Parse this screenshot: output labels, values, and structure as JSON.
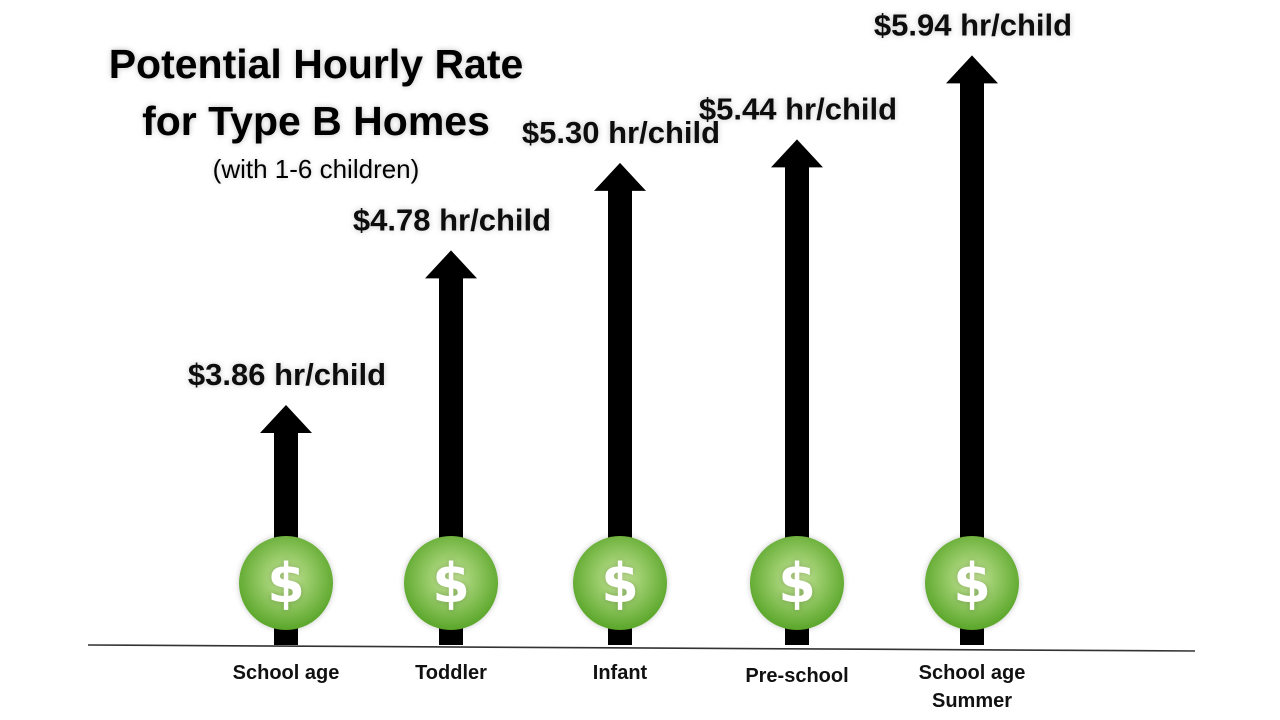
{
  "title": {
    "line1": "Potential Hourly Rate",
    "line2": "for Type B Homes",
    "subtitle": "(with 1-6 children)"
  },
  "coin_symbol": "$",
  "colors": {
    "arrow": "#000000",
    "coin_light": "#c9e89a",
    "coin_dark": "#5aa62a",
    "baseline": "#333333"
  },
  "chart_data": {
    "type": "bar",
    "title": "Potential Hourly Rate for Type B Homes",
    "subtitle": "(with 1-6 children)",
    "categories": [
      [
        "School age"
      ],
      [
        "Toddler"
      ],
      [
        "Infant"
      ],
      [
        "Pre-school"
      ],
      [
        "School age",
        "Summer"
      ]
    ],
    "values": [
      3.86,
      4.78,
      5.3,
      5.44,
      5.94
    ],
    "data_labels": [
      "$3.86 hr/child",
      "$4.78 hr/child",
      "$5.30 hr/child",
      "$5.44 hr/child",
      "$5.94 hr/child"
    ],
    "xlabel": "",
    "ylabel": "",
    "grid": false
  }
}
